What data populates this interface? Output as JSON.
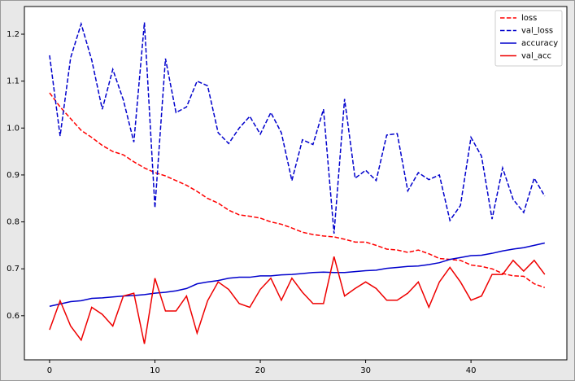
{
  "chart_data": {
    "type": "line",
    "x": [
      0,
      1,
      2,
      3,
      4,
      5,
      6,
      7,
      8,
      9,
      10,
      11,
      12,
      13,
      14,
      15,
      16,
      17,
      18,
      19,
      20,
      21,
      22,
      23,
      24,
      25,
      26,
      27,
      28,
      29,
      30,
      31,
      32,
      33,
      34,
      35,
      36,
      37,
      38,
      39,
      40,
      41,
      42,
      43,
      44,
      45,
      46,
      47
    ],
    "series": [
      {
        "name": "loss",
        "color": "#ff0000",
        "dash": true,
        "values": [
          1.075,
          1.045,
          1.02,
          0.995,
          0.98,
          0.963,
          0.95,
          0.943,
          0.928,
          0.915,
          0.905,
          0.898,
          0.888,
          0.878,
          0.865,
          0.85,
          0.84,
          0.825,
          0.815,
          0.812,
          0.808,
          0.8,
          0.795,
          0.787,
          0.778,
          0.773,
          0.77,
          0.768,
          0.763,
          0.757,
          0.757,
          0.75,
          0.742,
          0.74,
          0.735,
          0.74,
          0.732,
          0.722,
          0.72,
          0.718,
          0.708,
          0.705,
          0.7,
          0.69,
          0.685,
          0.684,
          0.668,
          0.66
        ]
      },
      {
        "name": "val_loss",
        "color": "#0000cc",
        "dash": true,
        "values": [
          1.155,
          0.983,
          1.15,
          1.222,
          1.145,
          1.04,
          1.125,
          1.06,
          0.97,
          1.225,
          0.83,
          1.148,
          1.033,
          1.045,
          1.1,
          1.09,
          0.99,
          0.967,
          1.0,
          1.025,
          0.987,
          1.033,
          0.99,
          0.888,
          0.975,
          0.965,
          1.04,
          0.775,
          1.062,
          0.893,
          0.91,
          0.888,
          0.985,
          0.988,
          0.866,
          0.905,
          0.89,
          0.9,
          0.803,
          0.835,
          0.98,
          0.94,
          0.806,
          0.915,
          0.848,
          0.82,
          0.893,
          0.855
        ]
      },
      {
        "name": "accuracy",
        "color": "#0000cc",
        "dash": false,
        "values": [
          0.62,
          0.625,
          0.63,
          0.632,
          0.637,
          0.638,
          0.64,
          0.642,
          0.643,
          0.645,
          0.648,
          0.65,
          0.653,
          0.658,
          0.668,
          0.672,
          0.675,
          0.68,
          0.682,
          0.682,
          0.685,
          0.685,
          0.687,
          0.688,
          0.69,
          0.692,
          0.693,
          0.692,
          0.692,
          0.694,
          0.696,
          0.697,
          0.701,
          0.703,
          0.705,
          0.706,
          0.709,
          0.713,
          0.72,
          0.724,
          0.728,
          0.729,
          0.733,
          0.738,
          0.742,
          0.745,
          0.75,
          0.755
        ]
      },
      {
        "name": "val_acc",
        "color": "#ee0000",
        "dash": false,
        "values": [
          0.57,
          0.632,
          0.578,
          0.548,
          0.618,
          0.603,
          0.578,
          0.642,
          0.648,
          0.54,
          0.68,
          0.61,
          0.61,
          0.642,
          0.563,
          0.632,
          0.672,
          0.656,
          0.626,
          0.618,
          0.656,
          0.68,
          0.633,
          0.68,
          0.65,
          0.626,
          0.626,
          0.726,
          0.642,
          0.658,
          0.672,
          0.658,
          0.633,
          0.633,
          0.648,
          0.672,
          0.618,
          0.672,
          0.703,
          0.672,
          0.633,
          0.642,
          0.688,
          0.688,
          0.718,
          0.695,
          0.718,
          0.688
        ]
      }
    ],
    "xlim": [
      -2.39,
      49.1
    ],
    "xticks": [
      0,
      10,
      20,
      30,
      40
    ],
    "ylim": [
      0.506,
      1.259
    ],
    "yticks": [
      0.6,
      0.7,
      0.8,
      0.9,
      {
        "value": 1,
        "label": "1.0"
      },
      1.1,
      1.2
    ],
    "legend": "upper right"
  }
}
